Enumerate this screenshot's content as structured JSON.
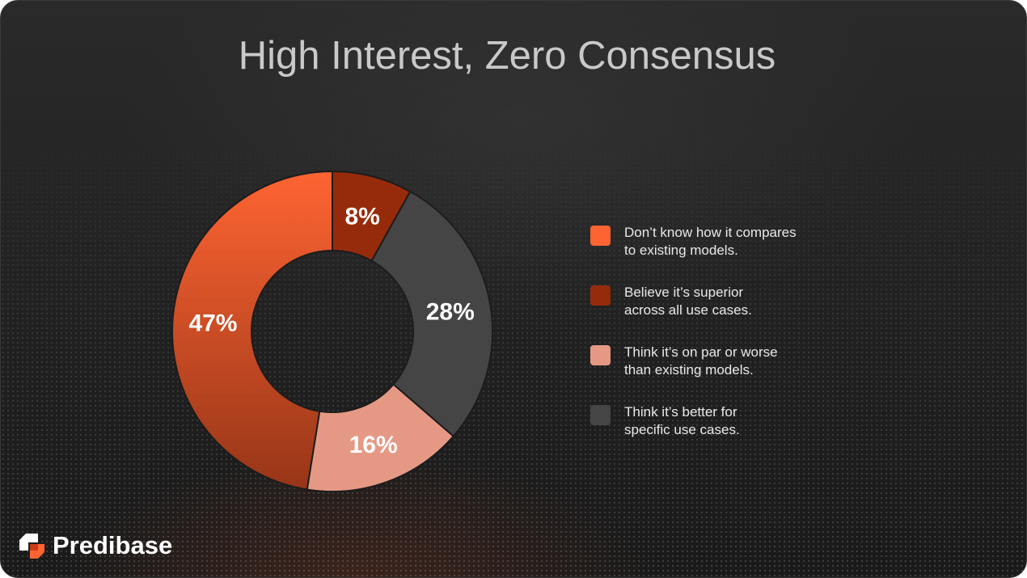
{
  "colors": {
    "dont_know": "#fe6432",
    "superior": "#962b0b",
    "on_par_or_worse": "#e59985",
    "better_specific": "#464546"
  },
  "chart_data": {
    "type": "pie",
    "variant": "donut",
    "title": "High Interest, Zero Consensus",
    "legend_placement": "right",
    "slices": [
      {
        "label_lines": [
          "Don’t know how it compares",
          "to existing models."
        ],
        "value": 47,
        "display": "47%"
      },
      {
        "label_lines": [
          "Believe it’s superior",
          "across all use cases."
        ],
        "value": 8,
        "display": "8%"
      },
      {
        "label_lines": [
          "Think it’s on par or worse",
          "than existing models."
        ],
        "value": 16,
        "display": "16%"
      },
      {
        "label_lines": [
          "Think it’s better for",
          "specific use cases."
        ],
        "value": 28,
        "display": "28%"
      }
    ],
    "draw_order": [
      1,
      3,
      2,
      0
    ]
  },
  "brand": {
    "name": "Predibase",
    "logo_icon": "predibase-logo-icon"
  }
}
